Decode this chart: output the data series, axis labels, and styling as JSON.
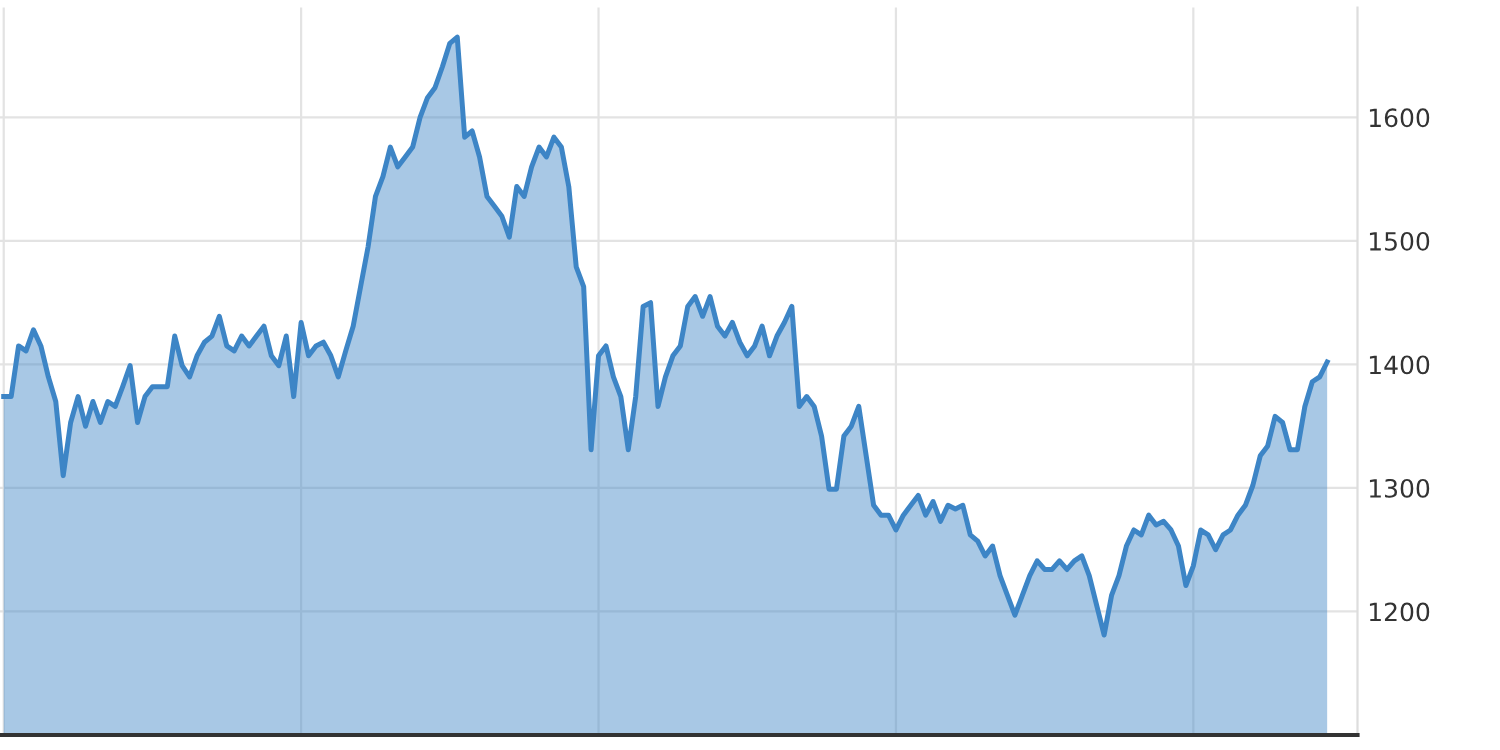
{
  "chart_data": {
    "type": "area",
    "categories": [
      null,
      null,
      null,
      null,
      null,
      null,
      null,
      null,
      null,
      null,
      null,
      null,
      null,
      null,
      null,
      null,
      null,
      null,
      null,
      null,
      null,
      null,
      null,
      null,
      null,
      null,
      null,
      null,
      null,
      null,
      null,
      null,
      null,
      null,
      null,
      null,
      null,
      null,
      null,
      null,
      null,
      null,
      null,
      null,
      null,
      null,
      null,
      null,
      null,
      null,
      null,
      null,
      null,
      null,
      null,
      null,
      null,
      null,
      null,
      null,
      null,
      null,
      null,
      null,
      null,
      null,
      null,
      null,
      null,
      null,
      null,
      null,
      null,
      null,
      null,
      null,
      null,
      null,
      null,
      null,
      null,
      null,
      null,
      null,
      null,
      null,
      null,
      null,
      null,
      null,
      null,
      null,
      null,
      null,
      null,
      null,
      null,
      null,
      null,
      null,
      null,
      null,
      null,
      null,
      null,
      null,
      null,
      null,
      null,
      null,
      null,
      null,
      null,
      null,
      null,
      null,
      null,
      null,
      null,
      null,
      null,
      null,
      null,
      null,
      null,
      null,
      null,
      null,
      null,
      null,
      null,
      null,
      null,
      null,
      null,
      null,
      null,
      null,
      null,
      null,
      null,
      null,
      null,
      null,
      null,
      null,
      null,
      null,
      null,
      null,
      null,
      null,
      null,
      null,
      null,
      null,
      null,
      null,
      null,
      null,
      null,
      null,
      null,
      null,
      null,
      null,
      null,
      null,
      null,
      null,
      null,
      null,
      null,
      null,
      null,
      null,
      null,
      null,
      null
    ],
    "series": [
      {
        "color": "#3d85c6",
        "values": [
          1374,
          1374,
          1415,
          1411,
          1428,
          1415,
          1390,
          1370,
          1310,
          1353,
          1374,
          1350,
          1370,
          1353,
          1370,
          1366,
          1382,
          1399,
          1353,
          1374,
          1382,
          1382,
          1382,
          1423,
          1399,
          1390,
          1407,
          1418,
          1423,
          1439,
          1415,
          1411,
          1423,
          1415,
          1423,
          1431,
          1407,
          1399,
          1423,
          1374,
          1434,
          1407,
          1415,
          1418,
          1407,
          1390,
          1411,
          1431,
          1463,
          1495,
          1536,
          1552,
          1576,
          1560,
          1568,
          1576,
          1600,
          1616,
          1624,
          1641,
          1660,
          1665,
          1584,
          1589,
          1568,
          1536,
          1528,
          1520,
          1503,
          1544,
          1536,
          1560,
          1576,
          1568,
          1584,
          1576,
          1544,
          1479,
          1463,
          1331,
          1407,
          1415,
          1390,
          1374,
          1331,
          1374,
          1447,
          1450,
          1366,
          1390,
          1407,
          1415,
          1447,
          1455,
          1439,
          1455,
          1431,
          1423,
          1434,
          1418,
          1407,
          1415,
          1431,
          1407,
          1423,
          1434,
          1447,
          1366,
          1374,
          1366,
          1342,
          1299,
          1299,
          1342,
          1350,
          1366,
          1326,
          1286,
          1278,
          1278,
          1266,
          1278,
          1286,
          1294,
          1278,
          1289,
          1273,
          1286,
          1283,
          1286,
          1262,
          1257,
          1245,
          1253,
          1229,
          1213,
          1197,
          1213,
          1229,
          1241,
          1234,
          1234,
          1241,
          1234,
          1241,
          1245,
          1229,
          1205,
          1181,
          1213,
          1229,
          1253,
          1266,
          1262,
          1278,
          1270,
          1273,
          1266,
          1253,
          1221,
          1237,
          1266,
          1262,
          1250,
          1262,
          1266,
          1278,
          1286,
          1302,
          1326,
          1334,
          1358,
          1353,
          1331,
          1331,
          1366,
          1386,
          1390,
          1402
        ]
      }
    ],
    "ylim": [
      1100,
      1689
    ],
    "yticks": [
      1200,
      1300,
      1400,
      1500,
      1600
    ],
    "grid": true,
    "tick_labels": "y",
    "legend": false
  }
}
